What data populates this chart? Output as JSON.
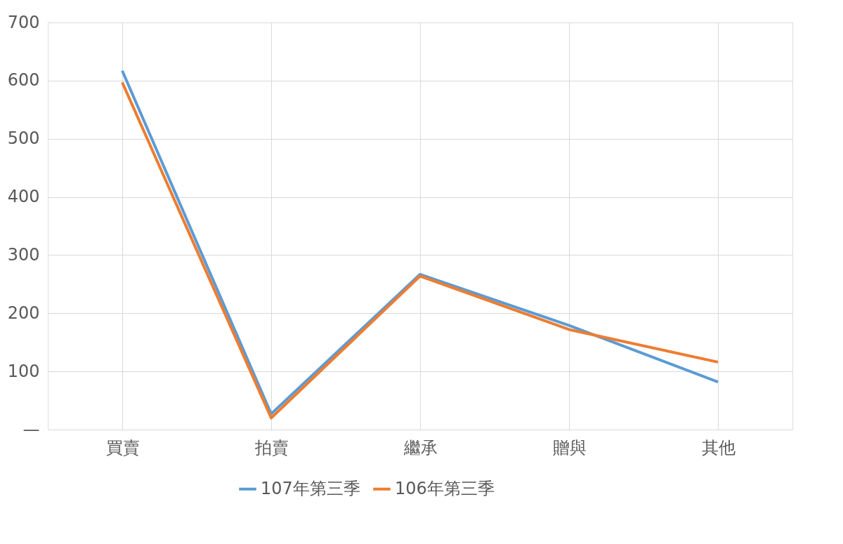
{
  "chart_data": {
    "type": "line",
    "categories": [
      "買賣",
      "拍賣",
      "繼承",
      "贈與",
      "其他"
    ],
    "series": [
      {
        "name": "107年第三季",
        "color": "#5b9bd5",
        "values": [
          617,
          27,
          267,
          179,
          82
        ]
      },
      {
        "name": "106年第三季",
        "color": "#ed7d31",
        "values": [
          597,
          20,
          264,
          172,
          116
        ]
      }
    ],
    "ylim": [
      0,
      700
    ],
    "yticks": [
      {
        "value": 0,
        "label": "—"
      },
      100,
      200,
      300,
      400,
      500,
      600,
      700
    ],
    "grid": true,
    "legend": "bottom",
    "marker": "none",
    "line_style": "solid"
  }
}
